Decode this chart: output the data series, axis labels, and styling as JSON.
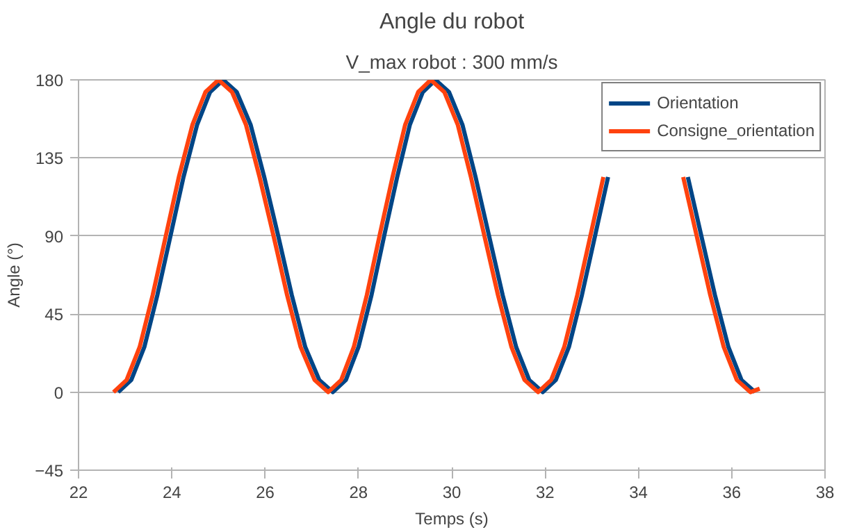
{
  "chart_data": {
    "type": "line",
    "title": "Angle du robot",
    "subtitle": "V_max robot : 300 mm/s",
    "xlabel": "Temps (s)",
    "ylabel": "Angle (°)",
    "xlim": [
      22,
      38
    ],
    "xticks": [
      22,
      24,
      26,
      28,
      30,
      32,
      34,
      36,
      38
    ],
    "ylim": [
      -45,
      180
    ],
    "yticks": [
      -45,
      0,
      45,
      90,
      135,
      180
    ],
    "grid": "y",
    "legend": "top right",
    "line_style": "solid",
    "marker": "none",
    "series": [
      {
        "name": "Orientation",
        "color": "#004586",
        "x": [
          22.85,
          23.13,
          23.41,
          23.69,
          23.97,
          24.25,
          24.54,
          24.82,
          25.1,
          25.39,
          25.69,
          25.98,
          26.28,
          26.57,
          26.86,
          27.16,
          27.45,
          27.73,
          28.0,
          28.28,
          28.55,
          28.83,
          29.1,
          29.38,
          29.65,
          29.94,
          30.23,
          30.51,
          30.8,
          31.09,
          31.38,
          31.66,
          31.95,
          32.23,
          32.51,
          32.79,
          33.07,
          33.35,
          33.63,
          33.91,
          34.2,
          34.49,
          34.78,
          35.06,
          35.35,
          35.64,
          35.93,
          36.21,
          36.5
        ],
        "values": [
          0,
          7,
          26,
          56,
          90,
          124,
          154,
          173,
          180,
          173,
          154,
          124,
          90,
          56,
          26,
          7,
          0,
          7,
          26,
          56,
          90,
          124,
          154,
          173,
          180,
          173,
          154,
          124,
          90,
          56,
          26,
          7,
          0,
          7,
          26,
          56,
          90,
          124,
          null,
          null,
          null,
          null,
          null,
          124,
          90,
          56,
          26,
          7,
          0
        ]
      },
      {
        "name": "Consigne_orientation",
        "color": "#ff420e",
        "x": [
          22.75,
          23.03,
          23.31,
          23.59,
          23.87,
          24.15,
          24.44,
          24.72,
          25.0,
          25.29,
          25.59,
          25.88,
          26.18,
          26.47,
          26.76,
          27.06,
          27.35,
          27.63,
          27.9,
          28.18,
          28.45,
          28.73,
          29.0,
          29.28,
          29.55,
          29.84,
          30.13,
          30.41,
          30.7,
          30.99,
          31.28,
          31.56,
          31.85,
          32.13,
          32.41,
          32.69,
          32.97,
          33.25,
          33.53,
          33.81,
          34.1,
          34.39,
          34.68,
          34.96,
          35.25,
          35.54,
          35.83,
          36.11,
          36.4,
          36.6
        ],
        "values": [
          0,
          7,
          26,
          56,
          90,
          124,
          154,
          173,
          180,
          173,
          154,
          124,
          90,
          56,
          26,
          7,
          0,
          7,
          26,
          56,
          90,
          124,
          154,
          173,
          180,
          173,
          154,
          124,
          90,
          56,
          26,
          7,
          0,
          7,
          26,
          56,
          90,
          124,
          null,
          null,
          null,
          null,
          null,
          124,
          90,
          56,
          26,
          7,
          0,
          2
        ]
      }
    ]
  }
}
